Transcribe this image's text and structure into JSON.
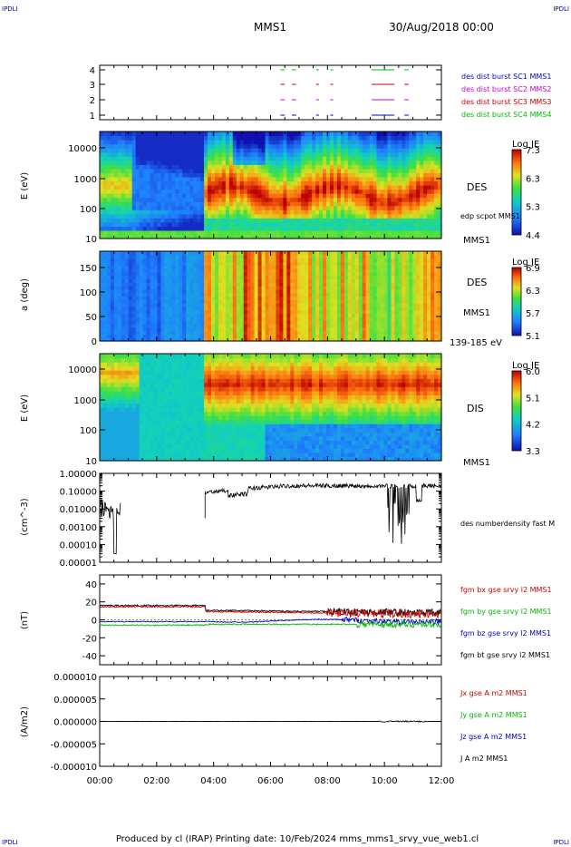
{
  "header": {
    "corner_tl": "IPDLI",
    "corner_tr": "IPDLI",
    "corner_bl": "IPDLI",
    "corner_br": "IPDLI",
    "spacecraft": "MMS1",
    "date": "30/Aug/2018 00:00",
    "footer": "Produced by cl (IRAP)   Printing date: 10/Feb/2024   mms_mms1_srvy_vue_web1.cl"
  },
  "colors": {
    "c1": "#0000cc",
    "c2": "#cc00cc",
    "c3": "#cc0000",
    "c4": "#00bb00",
    "black": "#000000"
  },
  "chart_data": [
    {
      "type": "scatter",
      "name": "burst-availability",
      "yticks": [
        "1",
        "2",
        "3",
        "4"
      ],
      "legend": [
        {
          "label": "des dist burst SC1 MMS1",
          "color": "#0000cc"
        },
        {
          "label": "des dist burst SC2 MMS2",
          "color": "#cc00cc"
        },
        {
          "label": "des dist burst SC3 MMS3",
          "color": "#cc0000"
        },
        {
          "label": "des dist burst SC4 MMS4",
          "color": "#00bb00"
        }
      ],
      "segments_hours": [
        [
          6.35,
          6.5
        ],
        [
          6.75,
          6.9
        ],
        [
          7.6,
          7.7
        ],
        [
          8.1,
          8.2
        ],
        [
          9.55,
          10.35
        ],
        [
          10.7,
          10.85
        ]
      ]
    },
    {
      "type": "heatmap",
      "name": "des-energy",
      "ylabel": "E (eV)",
      "yticks": [
        "10",
        "100",
        "1000",
        "10000"
      ],
      "colorbar": {
        "title": "Log JE",
        "ticks": [
          "7.3",
          "6.3",
          "5.3",
          "4.4"
        ]
      },
      "side_labels": [
        "DES",
        "edp scpot MMS1",
        "MMS1"
      ]
    },
    {
      "type": "heatmap",
      "name": "des-pitch",
      "ylabel": "a (deg)",
      "yticks": [
        "0",
        "50",
        "100",
        "150"
      ],
      "colorbar": {
        "title": "Log JE",
        "ticks": [
          "6.9",
          "6.3",
          "5.7",
          "5.1"
        ]
      },
      "side_labels": [
        "DES",
        "MMS1",
        "139-185 eV"
      ]
    },
    {
      "type": "heatmap",
      "name": "dis-energy",
      "ylabel": "E (eV)",
      "yticks": [
        "10",
        "100",
        "1000",
        "10000"
      ],
      "colorbar": {
        "title": "Log JE",
        "ticks": [
          "6.0",
          "5.1",
          "4.2",
          "3.3"
        ]
      },
      "side_labels": [
        "DIS",
        "MMS1"
      ]
    },
    {
      "type": "line",
      "name": "density",
      "ylabel": "(cm^-3)",
      "yticks": [
        "0.00001",
        "0.00010",
        "0.00100",
        "0.01000",
        "0.10000",
        "1.00000"
      ],
      "ylim": [
        1e-05,
        1.0
      ],
      "legend": [
        {
          "label": "des numberdensity fast M",
          "color": "#000000"
        }
      ]
    },
    {
      "type": "line",
      "name": "magnetic-field",
      "ylabel": "(nT)",
      "yticks": [
        "-40",
        "-20",
        "0",
        "20",
        "40"
      ],
      "ylim": [
        -50,
        50
      ],
      "legend": [
        {
          "label": "fgm bx gse srvy l2 MMS1",
          "color": "#cc0000"
        },
        {
          "label": "fgm by gse srvy l2 MMS1",
          "color": "#00bb00"
        },
        {
          "label": "fgm bz gse srvy l2 MMS1",
          "color": "#0000cc"
        },
        {
          "label": "fgm bt gse srvy l2 MMS1",
          "color": "#000000"
        }
      ]
    },
    {
      "type": "line",
      "name": "current-density",
      "ylabel": "(A/m2)",
      "yticks": [
        "-0.000010",
        "-0.000005",
        "0.000000",
        "0.000005",
        "0.000010"
      ],
      "ylim": [
        -1e-05,
        1e-05
      ],
      "legend": [
        {
          "label": "Jx gse A m2 MMS1",
          "color": "#cc0000"
        },
        {
          "label": "Jy gse A m2 MMS1",
          "color": "#00bb00"
        },
        {
          "label": "Jz gse A m2 MMS1",
          "color": "#0000cc"
        },
        {
          "label": "J A m2 MMS1",
          "color": "#000000"
        }
      ]
    }
  ],
  "xaxis": {
    "ticks": [
      "00:00",
      "02:00",
      "04:00",
      "06:00",
      "08:00",
      "10:00",
      "12:00"
    ],
    "range_hours": [
      0,
      12
    ]
  }
}
